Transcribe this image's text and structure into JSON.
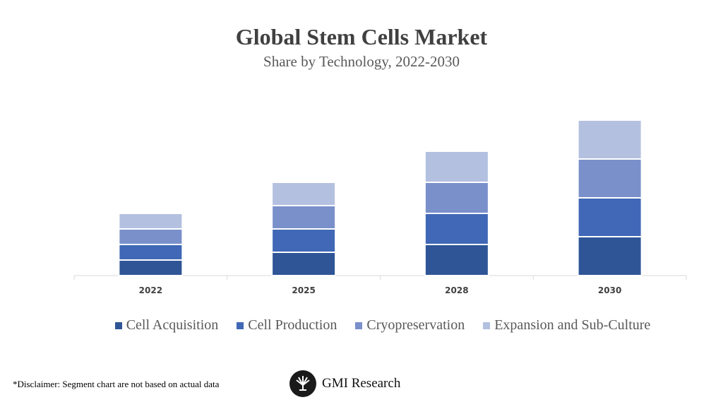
{
  "chart_data": {
    "type": "bar",
    "stacked": true,
    "title": "Global Stem Cells Market",
    "subtitle": "Share by Technology, 2022-2030",
    "categories": [
      "2022",
      "2025",
      "2028",
      "2030"
    ],
    "series": [
      {
        "name": "Cell Acquisition",
        "color": "#2F5597",
        "values": [
          2,
          3,
          4,
          5
        ]
      },
      {
        "name": "Cell Production",
        "color": "#4068B6",
        "values": [
          2,
          3,
          4,
          5
        ]
      },
      {
        "name": "Cryopreservation",
        "color": "#7A90CB",
        "values": [
          2,
          3,
          4,
          5
        ]
      },
      {
        "name": "Expansion and Sub-Culture",
        "color": "#B4C0E0",
        "values": [
          2,
          3,
          4,
          5
        ]
      }
    ],
    "y_axis_shown": false,
    "grid": false,
    "legend": "bottom"
  },
  "footer": {
    "disclaimer": "*Disclaimer:  Segment chart are not based on actual data",
    "brand": "GMI Research"
  }
}
